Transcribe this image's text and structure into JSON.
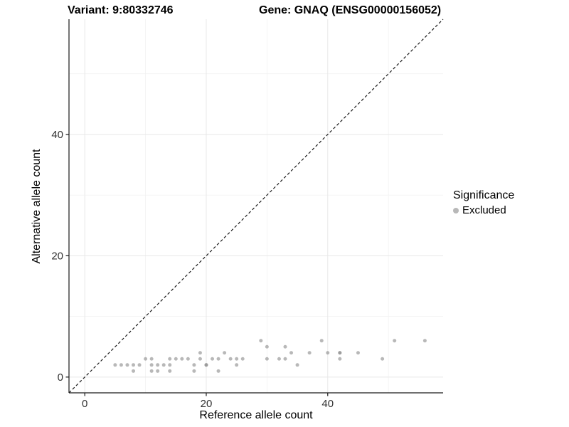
{
  "figure": {
    "title_left": "Variant: 9:80332746",
    "title_right": "Gene: GNAQ (ENSG00000156052)"
  },
  "chart_data": {
    "type": "scatter",
    "title_left": "Variant: 9:80332746",
    "title_right": "Gene: GNAQ (ENSG00000156052)",
    "xlabel": "Reference allele count",
    "ylabel": "Alternative allele count",
    "xlim": [
      -2.6,
      59
    ],
    "ylim": [
      -2.6,
      59
    ],
    "x_ticks": [
      0,
      20,
      40
    ],
    "y_ticks": [
      0,
      20,
      40
    ],
    "x_minor_gridlines": [
      10,
      30,
      50
    ],
    "y_minor_gridlines": [
      10,
      30,
      50
    ],
    "grid": true,
    "identity_line": {
      "style": "dashed",
      "from": [
        -2.6,
        -2.6
      ],
      "to": [
        59,
        59
      ],
      "color": "#1a1a1a"
    },
    "legend": {
      "title": "Significance",
      "position": "right",
      "items": [
        {
          "label": "Excluded",
          "color": "#8c8c8c",
          "opacity": 0.62
        }
      ]
    },
    "series": [
      {
        "name": "Excluded",
        "color": "#8c8c8c",
        "opacity": 0.62,
        "points": [
          [
            5,
            2
          ],
          [
            6,
            2
          ],
          [
            7,
            2
          ],
          [
            8,
            1
          ],
          [
            8,
            2
          ],
          [
            9,
            2
          ],
          [
            10,
            3
          ],
          [
            11,
            1
          ],
          [
            11,
            2
          ],
          [
            11,
            3
          ],
          [
            12,
            1
          ],
          [
            12,
            2
          ],
          [
            13,
            2
          ],
          [
            14,
            1
          ],
          [
            14,
            2
          ],
          [
            14,
            3
          ],
          [
            15,
            3
          ],
          [
            16,
            3
          ],
          [
            17,
            3
          ],
          [
            18,
            1
          ],
          [
            18,
            2
          ],
          [
            19,
            3
          ],
          [
            19,
            4
          ],
          [
            20,
            2
          ],
          [
            20,
            2
          ],
          [
            21,
            3
          ],
          [
            22,
            1
          ],
          [
            22,
            3
          ],
          [
            23,
            4
          ],
          [
            24,
            3
          ],
          [
            25,
            2
          ],
          [
            25,
            3
          ],
          [
            26,
            3
          ],
          [
            29,
            6
          ],
          [
            30,
            3
          ],
          [
            30,
            5
          ],
          [
            32,
            3
          ],
          [
            33,
            3
          ],
          [
            33,
            5
          ],
          [
            34,
            4
          ],
          [
            35,
            2
          ],
          [
            37,
            4
          ],
          [
            39,
            6
          ],
          [
            40,
            4
          ],
          [
            42,
            3
          ],
          [
            42,
            4
          ],
          [
            42,
            4
          ],
          [
            45,
            4
          ],
          [
            49,
            3
          ],
          [
            51,
            6
          ],
          [
            56,
            6
          ]
        ]
      }
    ],
    "style": {
      "major_grid_color": "#e8e8e8",
      "minor_grid_color": "#f2f2f2",
      "axis_line_color": "#1a1a1a",
      "tick_label_color": "#333333",
      "point_radius": 2.5
    }
  }
}
